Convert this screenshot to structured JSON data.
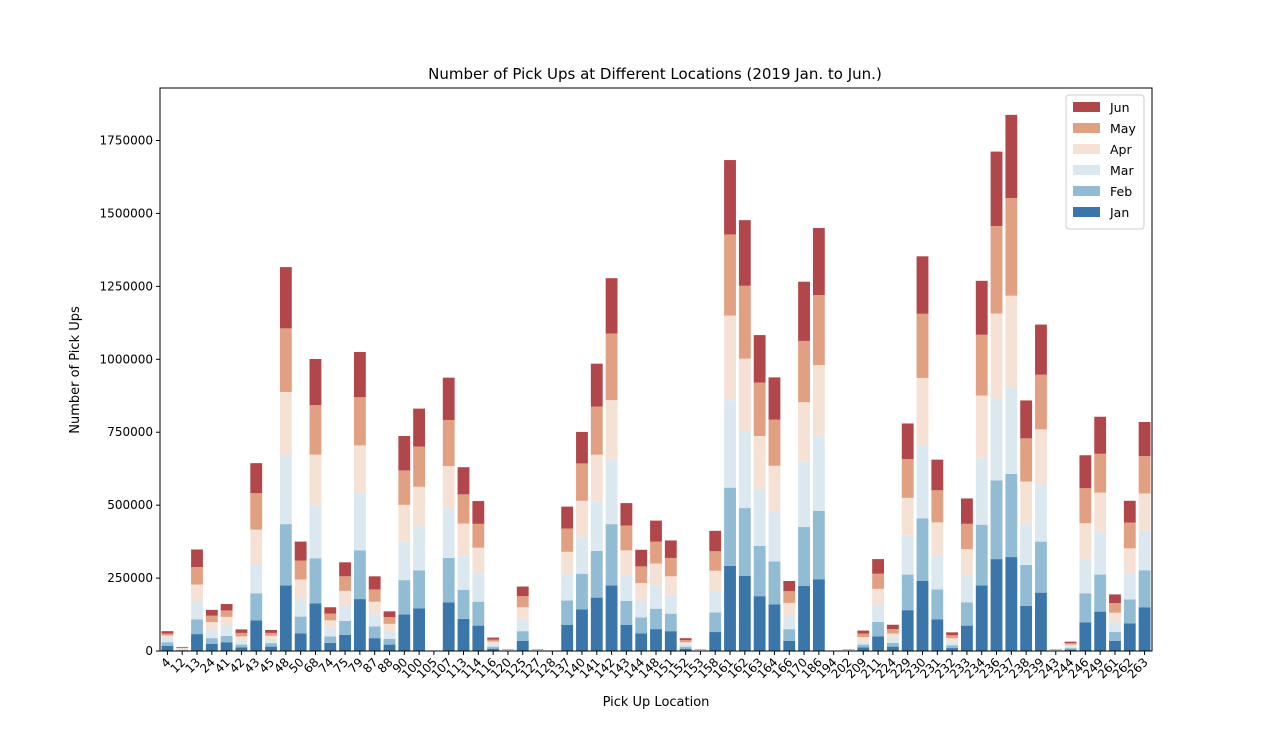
{
  "chart_data": {
    "type": "bar",
    "stacked": true,
    "title": "Number of Pick Ups at Different Locations (2019 Jan. to Jun.)",
    "xlabel": "Pick Up Location",
    "ylabel": "Number of Pick Ups",
    "ylim": [
      0,
      1930000
    ],
    "yticks": [
      0,
      250000,
      500000,
      750000,
      1000000,
      1250000,
      1500000,
      1750000
    ],
    "ytick_labels": [
      "0",
      "250000",
      "500000",
      "750000",
      "1000000",
      "1250000",
      "1500000",
      "1750000"
    ],
    "grid": false,
    "legend_position": "top-right",
    "categories": [
      "4",
      "12",
      "13",
      "24",
      "41",
      "42",
      "43",
      "45",
      "48",
      "50",
      "68",
      "74",
      "75",
      "79",
      "87",
      "88",
      "90",
      "100",
      "105",
      "107",
      "113",
      "114",
      "116",
      "120",
      "125",
      "127",
      "128",
      "137",
      "140",
      "141",
      "142",
      "143",
      "144",
      "148",
      "151",
      "152",
      "153",
      "158",
      "161",
      "162",
      "163",
      "164",
      "166",
      "170",
      "186",
      "194",
      "202",
      "209",
      "211",
      "224",
      "229",
      "230",
      "231",
      "232",
      "233",
      "234",
      "236",
      "237",
      "238",
      "239",
      "243",
      "244",
      "246",
      "249",
      "261",
      "262",
      "263"
    ],
    "series": [
      {
        "name": "Jan",
        "color": "#3b76aa",
        "values": [
          18000,
          2000,
          58000,
          24000,
          30000,
          12000,
          105000,
          15000,
          225000,
          60000,
          163000,
          28000,
          55000,
          178000,
          44000,
          22000,
          125000,
          146000,
          0,
          167000,
          110000,
          87000,
          8000,
          1000,
          35000,
          1000,
          0,
          90000,
          143000,
          183000,
          225000,
          90000,
          60000,
          75000,
          68000,
          8000,
          1000,
          65000,
          292000,
          258000,
          188000,
          160000,
          35000,
          223000,
          246000,
          0,
          1000,
          12000,
          50000,
          15000,
          140000,
          240000,
          108000,
          10000,
          87000,
          225000,
          315000,
          322000,
          155000,
          200000,
          1000,
          5000,
          98000,
          135000,
          35000,
          95000,
          150000
        ]
      },
      {
        "name": "Feb",
        "color": "#91bcd4",
        "values": [
          12000,
          2000,
          50000,
          20000,
          22000,
          10000,
          93000,
          12000,
          210000,
          58000,
          155000,
          22000,
          48000,
          167000,
          40000,
          20000,
          118000,
          130000,
          0,
          152000,
          100000,
          82000,
          7000,
          1000,
          33000,
          1000,
          0,
          83000,
          122000,
          160000,
          210000,
          82000,
          55000,
          70000,
          60000,
          7000,
          1000,
          67000,
          268000,
          232000,
          172000,
          147000,
          40000,
          202000,
          234000,
          0,
          1000,
          10000,
          50000,
          13000,
          122000,
          215000,
          103000,
          10000,
          80000,
          208000,
          270000,
          285000,
          140000,
          175000,
          1000,
          5000,
          100000,
          127000,
          30000,
          82000,
          127000
        ]
      },
      {
        "name": "Mar",
        "color": "#dce8f0",
        "values": [
          15000,
          3000,
          60000,
          30000,
          37000,
          15000,
          100000,
          15000,
          238000,
          62000,
          180000,
          30000,
          53000,
          198000,
          42000,
          26000,
          133000,
          152000,
          0,
          170000,
          115000,
          100000,
          9000,
          1000,
          42000,
          1000,
          0,
          90000,
          127000,
          170000,
          220000,
          85000,
          58000,
          80000,
          65000,
          8000,
          1000,
          73000,
          300000,
          262000,
          192000,
          173000,
          45000,
          225000,
          260000,
          0,
          1000,
          13000,
          58000,
          17000,
          133000,
          248000,
          115000,
          12000,
          92000,
          228000,
          280000,
          298000,
          143000,
          197000,
          1000,
          6000,
          118000,
          148000,
          33000,
          87000,
          135000
        ]
      },
      {
        "name": "Apr",
        "color": "#f6e1d5",
        "values": [
          8000,
          3000,
          60000,
          25000,
          28000,
          13000,
          118000,
          10000,
          215000,
          65000,
          175000,
          25000,
          50000,
          162000,
          43000,
          25000,
          125000,
          135000,
          0,
          145000,
          112000,
          85000,
          8000,
          1000,
          40000,
          1000,
          0,
          77000,
          123000,
          160000,
          205000,
          88000,
          60000,
          75000,
          63000,
          7000,
          1000,
          70000,
          290000,
          250000,
          185000,
          155000,
          45000,
          203000,
          240000,
          0,
          1000,
          13000,
          55000,
          15000,
          130000,
          233000,
          115000,
          12000,
          90000,
          215000,
          292000,
          313000,
          143000,
          188000,
          1000,
          6000,
          122000,
          133000,
          33000,
          88000,
          128000
        ]
      },
      {
        "name": "May",
        "color": "#e2a082",
        "values": [
          7000,
          2000,
          60000,
          22000,
          22000,
          12000,
          125000,
          10000,
          218000,
          65000,
          170000,
          23000,
          50000,
          165000,
          42000,
          23000,
          118000,
          138000,
          0,
          158000,
          100000,
          82000,
          7000,
          1000,
          38000,
          1000,
          0,
          80000,
          128000,
          165000,
          228000,
          85000,
          57000,
          75000,
          63000,
          7000,
          1000,
          67000,
          278000,
          250000,
          183000,
          158000,
          40000,
          210000,
          240000,
          0,
          1000,
          12000,
          52000,
          15000,
          133000,
          220000,
          110000,
          10000,
          87000,
          208000,
          300000,
          335000,
          148000,
          187000,
          1000,
          5000,
          120000,
          133000,
          33000,
          88000,
          128000
        ]
      },
      {
        "name": "Jun",
        "color": "#b2474b",
        "values": [
          8000,
          2000,
          60000,
          20000,
          22000,
          12000,
          103000,
          10000,
          210000,
          65000,
          158000,
          22000,
          48000,
          155000,
          45000,
          20000,
          118000,
          130000,
          0,
          145000,
          93000,
          78000,
          7000,
          1000,
          33000,
          1000,
          0,
          75000,
          108000,
          147000,
          190000,
          77000,
          57000,
          72000,
          60000,
          7000,
          1000,
          70000,
          255000,
          225000,
          163000,
          145000,
          35000,
          203000,
          230000,
          0,
          1000,
          10000,
          50000,
          15000,
          122000,
          197000,
          105000,
          10000,
          87000,
          185000,
          255000,
          285000,
          130000,
          172000,
          1000,
          5000,
          113000,
          127000,
          30000,
          75000,
          117000
        ]
      }
    ]
  }
}
